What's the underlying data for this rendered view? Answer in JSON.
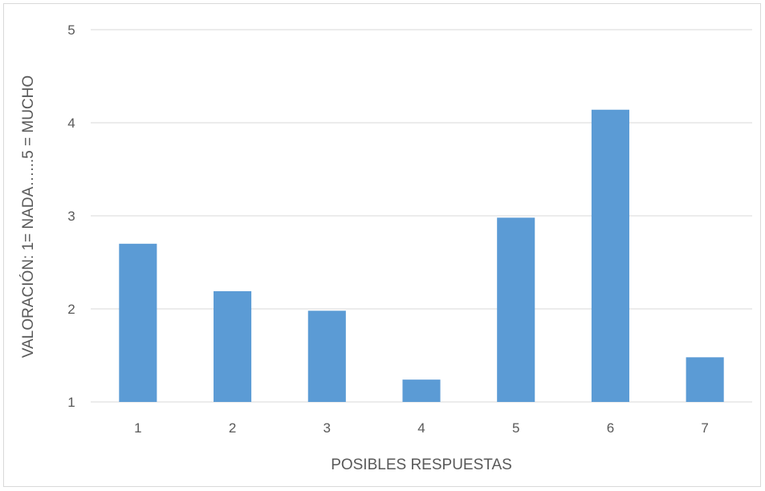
{
  "chart_data": {
    "type": "bar",
    "title": "",
    "xlabel": "POSIBLES RESPUESTAS",
    "ylabel": "VALORACIÓN:  1= NADA…...5 = MUCHO",
    "categories": [
      "1",
      "2",
      "3",
      "4",
      "5",
      "6",
      "7"
    ],
    "values": [
      2.7,
      2.19,
      1.98,
      1.24,
      2.98,
      4.14,
      1.48
    ],
    "ylim": [
      1,
      5
    ],
    "yticks": [
      "1",
      "2",
      "3",
      "4",
      "5"
    ],
    "grid": true,
    "legend": "none",
    "bar_color": "#5b9bd5",
    "grid_color": "#d9d9d9"
  }
}
